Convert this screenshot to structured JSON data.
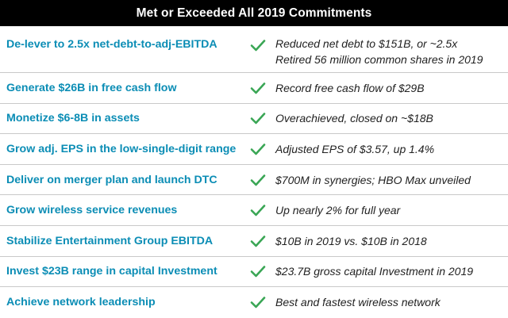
{
  "title": "Met or Exceeded All 2019 Commitments",
  "rows": [
    {
      "goal": "De-lever to 2.5x net-debt-to-adj-EBITDA",
      "results": [
        "Reduced net debt to $151B, or ~2.5x",
        "Retired 56 million common shares in 2019"
      ]
    },
    {
      "goal": "Generate $26B in free cash flow",
      "results": [
        "Record free cash flow of $29B"
      ]
    },
    {
      "goal": "Monetize $6-8B in assets",
      "results": [
        "Overachieved, closed on ~$18B"
      ]
    },
    {
      "goal": "Grow adj. EPS in the low-single-digit range",
      "results": [
        "Adjusted EPS of $3.57, up 1.4%"
      ]
    },
    {
      "goal": "Deliver on merger plan and launch DTC",
      "results": [
        "$700M in synergies; HBO Max unveiled"
      ]
    },
    {
      "goal": "Grow wireless service revenues",
      "results": [
        "Up nearly 2% for full year"
      ]
    },
    {
      "goal": "Stabilize Entertainment Group EBITDA",
      "results": [
        "$10B in 2019 vs. $10B in 2018"
      ]
    },
    {
      "goal": "Invest $23B range in capital Investment",
      "results": [
        "$23.7B gross capital Investment in 2019"
      ]
    },
    {
      "goal": "Achieve network leadership",
      "results": [
        "Best and fastest wireless network"
      ]
    }
  ],
  "icon": "checkmark-icon",
  "colors": {
    "header_bg": "#000000",
    "header_text": "#ffffff",
    "goal_text": "#0b8db5",
    "check": "#3aa655",
    "result_text": "#222222",
    "divider": "#c9c9c9"
  }
}
